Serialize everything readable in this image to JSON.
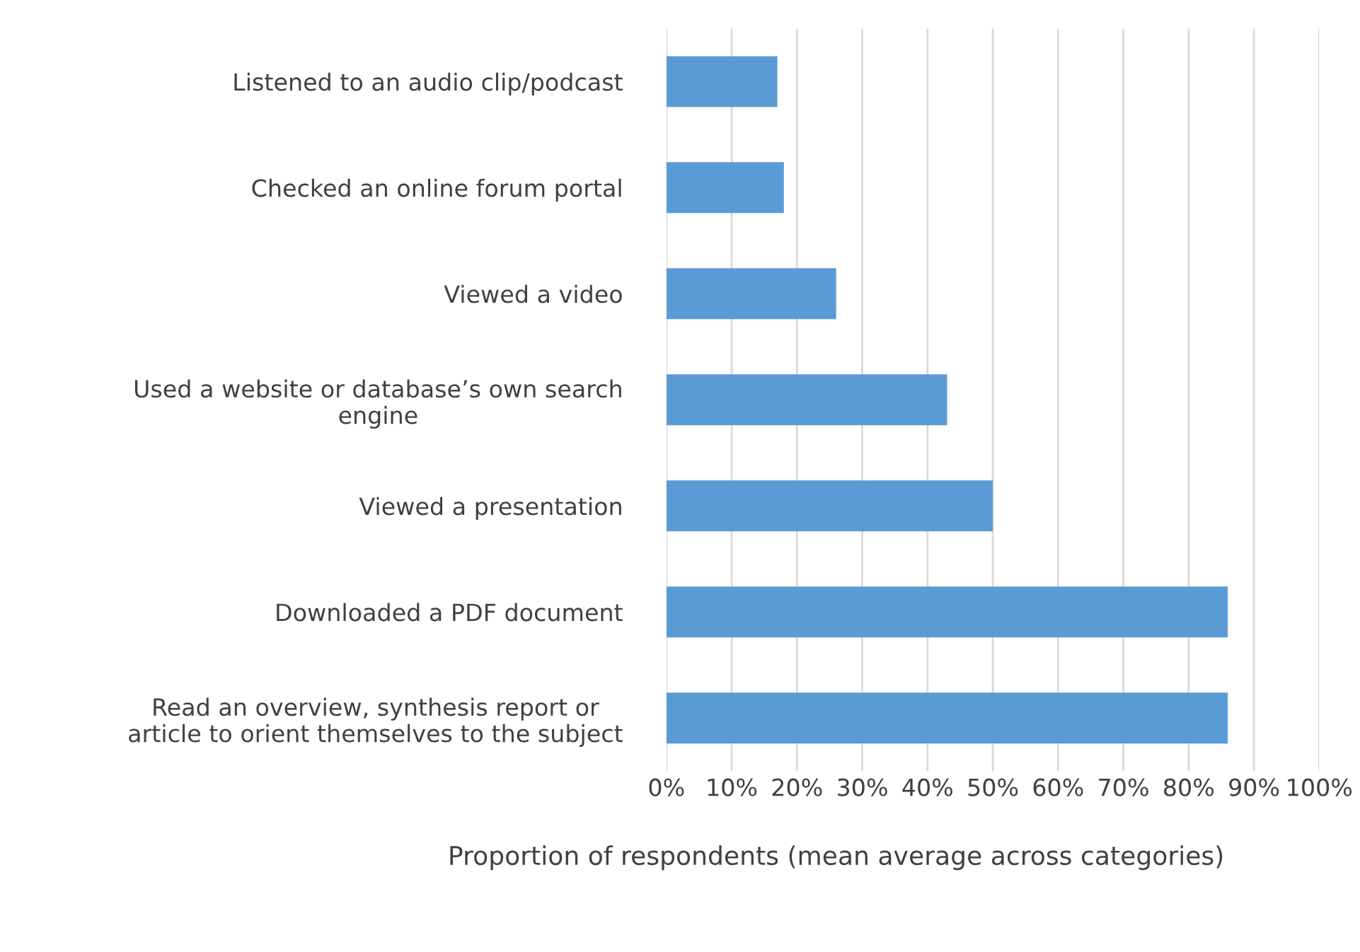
{
  "chart_data": {
    "type": "bar",
    "orientation": "horizontal",
    "xlabel": "Proportion of respondents (mean average across categories)",
    "categories": [
      "Listened to an audio clip/podcast",
      "Checked an online forum portal",
      "Viewed a video",
      "Used a website or database’s own search\nengine",
      "Viewed a presentation",
      "Downloaded a PDF document",
      "Read an overview, synthesis report or\narticle to orient themselves to the subject"
    ],
    "values": [
      17,
      18,
      26,
      43,
      50,
      86,
      86
    ],
    "color": "#5b9bd5",
    "xlim": [
      0,
      100
    ],
    "xticks": [
      {
        "value": 0,
        "label": "0%"
      },
      {
        "value": 10,
        "label": "10%"
      },
      {
        "value": 20,
        "label": "20%"
      },
      {
        "value": 30,
        "label": "30%"
      },
      {
        "value": 40,
        "label": "40%"
      },
      {
        "value": 50,
        "label": "50%"
      },
      {
        "value": 60,
        "label": "60%"
      },
      {
        "value": 70,
        "label": "70%"
      },
      {
        "value": 80,
        "label": "80%"
      },
      {
        "value": 90,
        "label": "90%"
      },
      {
        "value": 100,
        "label": "100%"
      }
    ],
    "grid": "x"
  }
}
